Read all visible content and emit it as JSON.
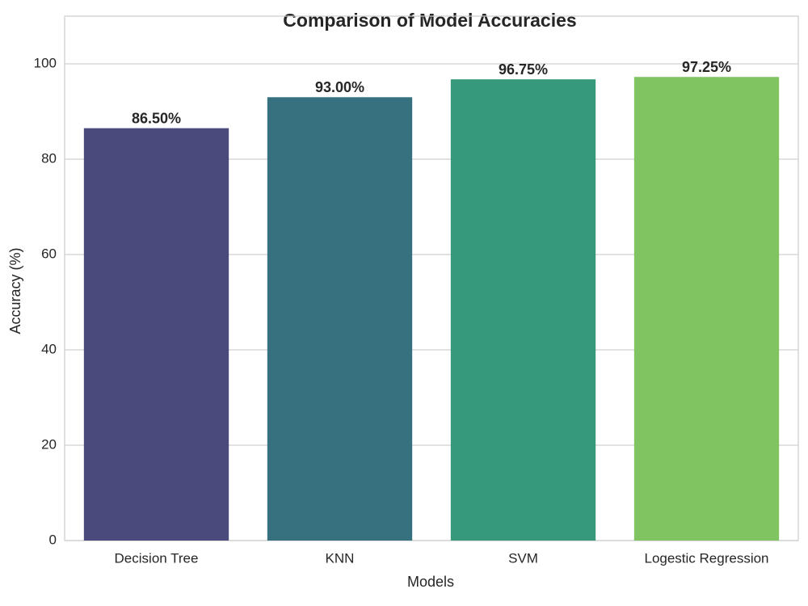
{
  "chart_data": {
    "type": "bar",
    "title": "Comparison of Model Accuracies",
    "xlabel": "Models",
    "ylabel": "Accuracy (%)",
    "categories": [
      "Decision Tree",
      "KNN",
      "SVM",
      "Logestic Regression"
    ],
    "values": [
      86.5,
      93,
      96.75,
      97.25
    ],
    "value_labels": [
      "86.50%",
      "93.00%",
      "96.75%",
      "97.25%"
    ],
    "colors": [
      "#4a4a7c",
      "#37717f",
      "#36997b",
      "#80c462"
    ],
    "ylim": [
      0,
      110
    ],
    "yticks": [
      0,
      20,
      40,
      60,
      80,
      100
    ],
    "grid": true
  }
}
